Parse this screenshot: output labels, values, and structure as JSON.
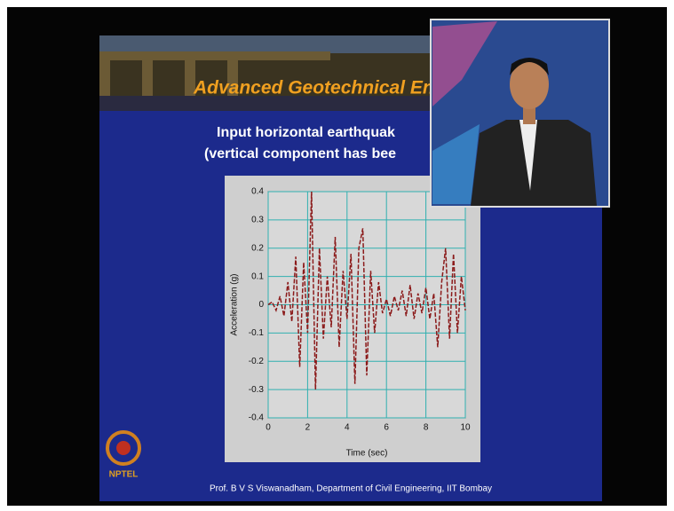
{
  "slide": {
    "banner_title": "Advanced Geotechnical Eng",
    "line1": "Input horizontal earthquak",
    "line2": "(vertical component has bee",
    "footer": "Prof. B V S Viswanadham, Department of Civil Engineering, IIT Bombay",
    "logo_text": "NPTEL"
  },
  "chart_data": {
    "type": "line",
    "x_label": "Time (sec)",
    "y_label": "Acceleration (g)",
    "x": [
      0,
      0.2,
      0.4,
      0.6,
      0.8,
      1.0,
      1.2,
      1.4,
      1.6,
      1.8,
      2.0,
      2.2,
      2.4,
      2.6,
      2.8,
      3.0,
      3.2,
      3.4,
      3.6,
      3.8,
      4.0,
      4.2,
      4.4,
      4.6,
      4.8,
      5.0,
      5.2,
      5.4,
      5.6,
      5.8,
      6.0,
      6.2,
      6.4,
      6.6,
      6.8,
      7.0,
      7.2,
      7.4,
      7.6,
      7.8,
      8.0,
      8.2,
      8.4,
      8.6,
      8.8,
      9.0,
      9.2,
      9.4,
      9.6,
      9.8,
      10.0
    ],
    "values": [
      0,
      0.01,
      -0.02,
      0.03,
      -0.04,
      0.08,
      -0.06,
      0.17,
      -0.22,
      0.15,
      -0.1,
      0.4,
      -0.3,
      0.2,
      -0.12,
      0.1,
      -0.08,
      0.24,
      -0.15,
      0.12,
      -0.05,
      0.18,
      -0.28,
      0.2,
      0.27,
      -0.25,
      0.12,
      -0.1,
      0.08,
      -0.03,
      0.02,
      -0.04,
      0.03,
      -0.02,
      0.05,
      -0.04,
      0.07,
      -0.05,
      0.04,
      -0.03,
      0.06,
      -0.05,
      0.04,
      -0.15,
      0.08,
      0.2,
      -0.12,
      0.18,
      -0.1,
      0.1,
      -0.02
    ],
    "color": "#8b1a1a",
    "xlim": [
      0,
      10
    ],
    "ylim": [
      -0.4,
      0.4
    ],
    "xticks": [
      0,
      2,
      4,
      6,
      8,
      10
    ],
    "yticks": [
      -0.4,
      -0.3,
      -0.2,
      -0.1,
      0,
      0.1,
      0.2,
      0.3,
      0.4
    ],
    "grid": true
  }
}
